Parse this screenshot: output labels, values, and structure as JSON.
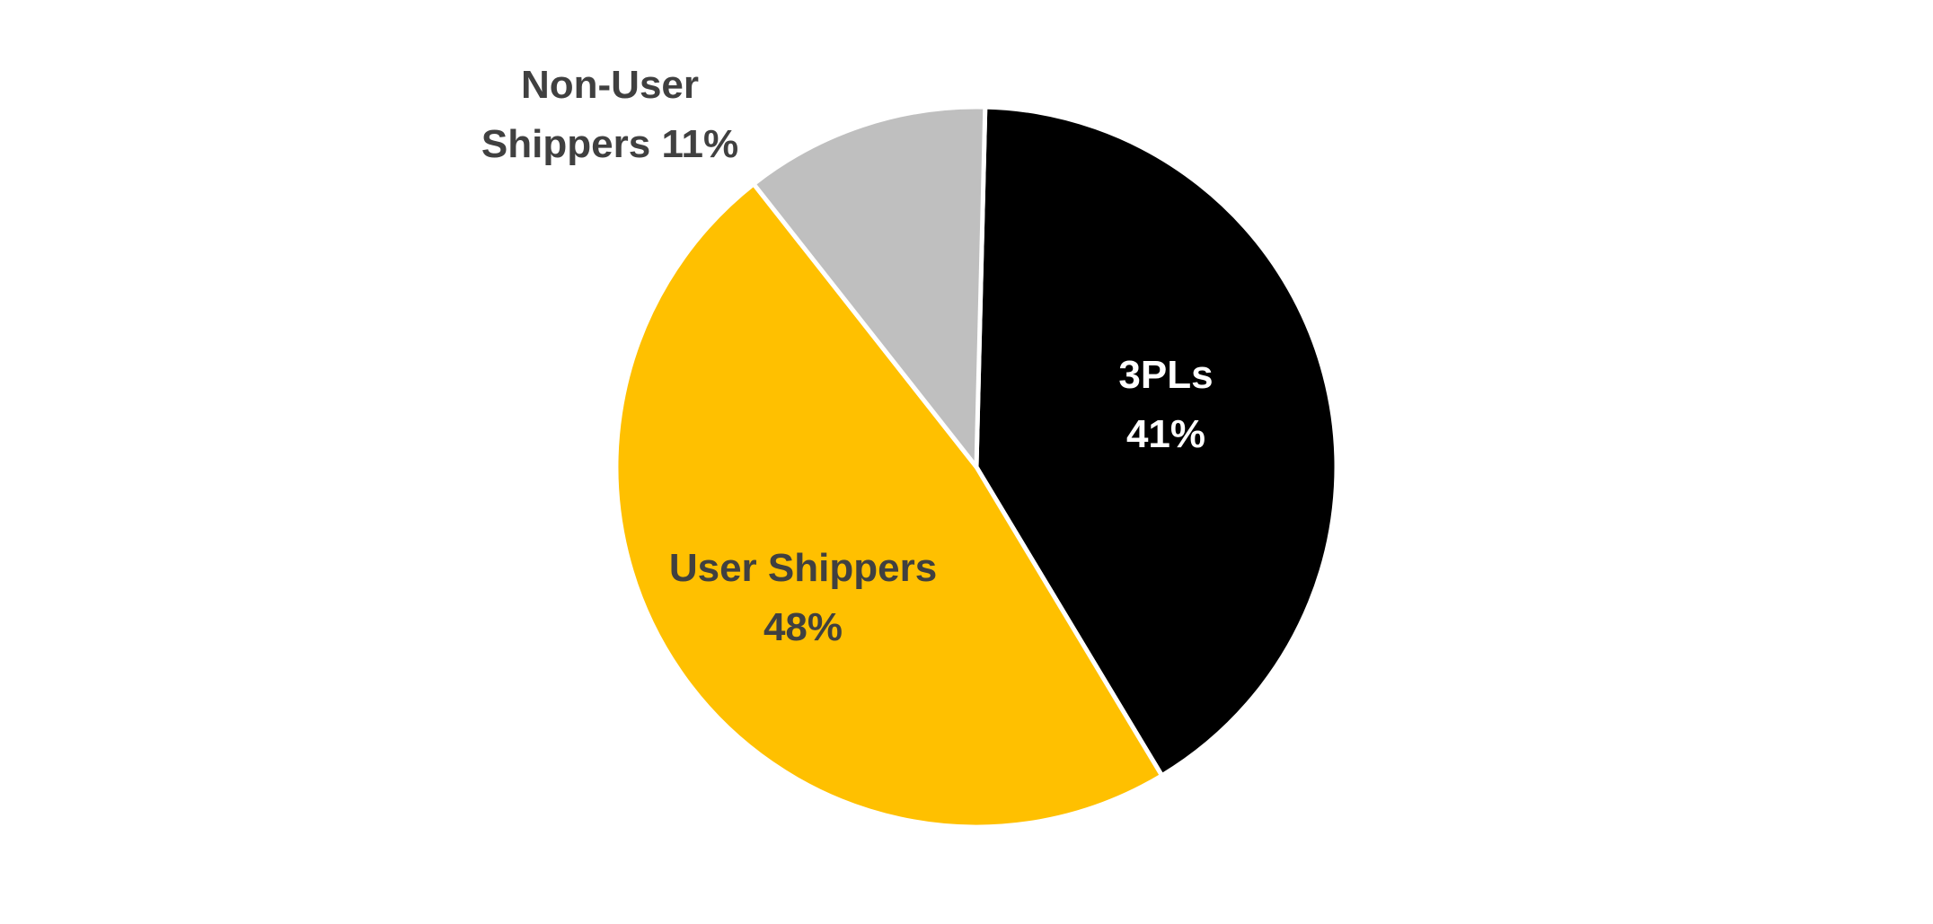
{
  "chart_data": {
    "type": "pie",
    "categories": [
      "3PLs",
      "User Shippers",
      "Non-User Shippers"
    ],
    "values": [
      41,
      48,
      11
    ],
    "value_labels": [
      "41%",
      "48%",
      "11%"
    ],
    "colors": [
      "#000000",
      "#FFC000",
      "#BFBFBF"
    ]
  }
}
